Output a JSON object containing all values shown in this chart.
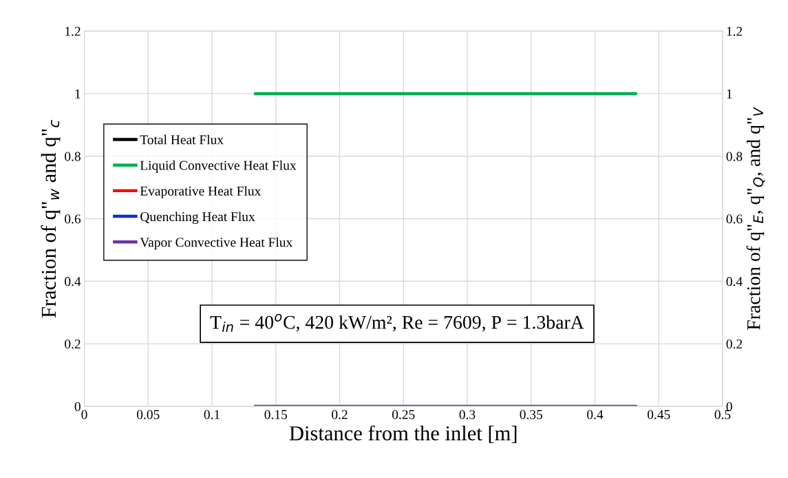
{
  "chart_data": {
    "type": "line",
    "xlabel": "Distance from the inlet [m]",
    "ylabel": "Fraction of q\"$_{w}$ and q\"$_{c}$",
    "y2label": "Fraction of q\"$_{E}$, q\"$_{Q}$, and q\"$_{V}$",
    "x": [
      0.133,
      0.433
    ],
    "series": [
      {
        "name": "Total Heat Flux",
        "color": "#000000",
        "values": [
          null,
          null
        ]
      },
      {
        "name": "Liquid Convective Heat Flux",
        "color": "#00b050",
        "values": [
          1,
          1
        ]
      },
      {
        "name": "Evaporative Heat Flux",
        "color": "#ff0000",
        "axis": "y2",
        "values": [
          null,
          null
        ]
      },
      {
        "name": "Quenching Heat Flux",
        "color": "#0033cc",
        "axis": "y2",
        "values": [
          null,
          null
        ]
      },
      {
        "name": "Vapor Convective Heat Flux",
        "color": "#7030a0",
        "axis": "y2",
        "values": [
          0,
          0
        ]
      }
    ],
    "xlim": [
      0,
      0.5
    ],
    "xticks": [
      0,
      0.05,
      0.1,
      0.15,
      0.2,
      0.25,
      0.3,
      0.35,
      0.4,
      0.45,
      0.5
    ],
    "ylim": [
      0,
      1.2
    ],
    "yticks": [
      0,
      0.2,
      0.4,
      0.6,
      0.8,
      1,
      1.2
    ],
    "y2lim": [
      0,
      1.2
    ],
    "y2ticks": [
      0,
      0.2,
      0.4,
      0.6,
      0.8,
      1,
      1.2
    ],
    "annotations": [
      "T$_{in}$ = 40$^{o}$C, 420 kW/m², Re = 7609, P = 1.3barA"
    ],
    "grid": true,
    "legend": "top left",
    "marker": "none",
    "line_style": "solid"
  }
}
